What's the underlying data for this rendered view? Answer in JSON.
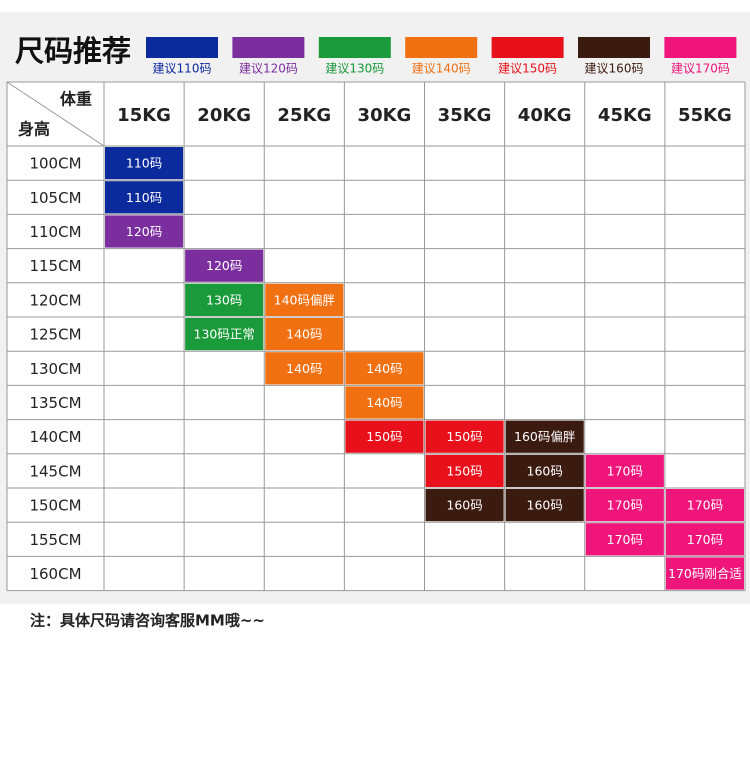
{
  "title": "尺码推荐",
  "legend": [
    {
      "label": "建议110码",
      "color": "#0b2a9c"
    },
    {
      "label": "建议120码",
      "color": "#7b2f9e"
    },
    {
      "label": "建议130码",
      "color": "#1a9a3a"
    },
    {
      "label": "建议140码",
      "color": "#f07012"
    },
    {
      "label": "建议150码",
      "color": "#e8101a"
    },
    {
      "label": "建议160码",
      "color": "#3b1a10"
    },
    {
      "label": "建议170码",
      "color": "#f0157a"
    }
  ],
  "table": {
    "corner_top": "体重",
    "corner_bottom": "身高",
    "columns": [
      "15KG",
      "20KG",
      "25KG",
      "30KG",
      "35KG",
      "40KG",
      "45KG",
      "55KG"
    ],
    "rows": [
      {
        "label": "100CM",
        "cells": [
          {
            "text": "110码",
            "color": "#0b2a9c"
          },
          null,
          null,
          null,
          null,
          null,
          null,
          null
        ]
      },
      {
        "label": "105CM",
        "cells": [
          {
            "text": "110码",
            "color": "#0b2a9c"
          },
          null,
          null,
          null,
          null,
          null,
          null,
          null
        ]
      },
      {
        "label": "110CM",
        "cells": [
          {
            "text": "120码",
            "color": "#7b2f9e"
          },
          null,
          null,
          null,
          null,
          null,
          null,
          null
        ]
      },
      {
        "label": "115CM",
        "cells": [
          null,
          {
            "text": "120码",
            "color": "#7b2f9e"
          },
          null,
          null,
          null,
          null,
          null,
          null
        ]
      },
      {
        "label": "120CM",
        "cells": [
          null,
          {
            "text": "130码",
            "color": "#1a9a3a"
          },
          {
            "text": "140码偏胖",
            "color": "#f07012"
          },
          null,
          null,
          null,
          null,
          null
        ]
      },
      {
        "label": "125CM",
        "cells": [
          null,
          {
            "text": "130码正常",
            "color": "#1a9a3a"
          },
          {
            "text": "140码",
            "color": "#f07012"
          },
          null,
          null,
          null,
          null,
          null
        ]
      },
      {
        "label": "130CM",
        "cells": [
          null,
          null,
          {
            "text": "140码",
            "color": "#f07012"
          },
          {
            "text": "140码",
            "color": "#f07012"
          },
          null,
          null,
          null,
          null
        ]
      },
      {
        "label": "135CM",
        "cells": [
          null,
          null,
          null,
          {
            "text": "140码",
            "color": "#f07012"
          },
          null,
          null,
          null,
          null
        ]
      },
      {
        "label": "140CM",
        "cells": [
          null,
          null,
          null,
          {
            "text": "150码",
            "color": "#e8101a"
          },
          {
            "text": "150码",
            "color": "#e8101a"
          },
          {
            "text": "160码偏胖",
            "color": "#3b1a10"
          },
          null,
          null
        ]
      },
      {
        "label": "145CM",
        "cells": [
          null,
          null,
          null,
          null,
          {
            "text": "150码",
            "color": "#e8101a"
          },
          {
            "text": "160码",
            "color": "#3b1a10"
          },
          {
            "text": "170码",
            "color": "#f0157a"
          },
          null
        ]
      },
      {
        "label": "150CM",
        "cells": [
          null,
          null,
          null,
          null,
          {
            "text": "160码",
            "color": "#3b1a10"
          },
          {
            "text": "160码",
            "color": "#3b1a10"
          },
          {
            "text": "170码",
            "color": "#f0157a"
          },
          {
            "text": "170码",
            "color": "#f0157a"
          }
        ]
      },
      {
        "label": "155CM",
        "cells": [
          null,
          null,
          null,
          null,
          null,
          null,
          {
            "text": "170码",
            "color": "#f0157a"
          },
          {
            "text": "170码",
            "color": "#f0157a"
          }
        ]
      },
      {
        "label": "160CM",
        "cells": [
          null,
          null,
          null,
          null,
          null,
          null,
          null,
          {
            "text": "170码刚合适",
            "color": "#f0157a"
          }
        ]
      }
    ]
  },
  "note": "注：具体尺码请咨询客服MM哦~~"
}
